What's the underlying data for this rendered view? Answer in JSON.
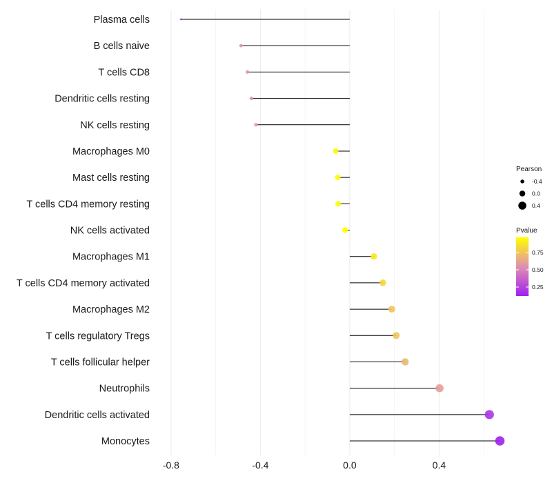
{
  "chart_data": {
    "type": "lollipop",
    "title": "",
    "xlabel": "",
    "ylabel": "",
    "xlim": [
      -0.88,
      0.72
    ],
    "x_ticks": [
      -0.8,
      -0.4,
      0.0,
      0.4
    ],
    "x_tick_labels": [
      "-0.8",
      "-0.4",
      "0.0",
      "0.4"
    ],
    "grid": true,
    "categories": [
      "Plasma cells",
      "B cells naive",
      "T cells CD8",
      "Dendritic cells resting",
      "NK cells resting",
      "Macrophages M0",
      "Mast cells resting",
      "T cells CD4 memory resting",
      "NK cells activated",
      "Macrophages M1",
      "T cells CD4 memory activated",
      "Macrophages M2",
      "T cells regulatory  Tregs ",
      "T cells follicular helper",
      "Neutrophils",
      "Dendritic cells activated",
      "Monocytes"
    ],
    "pearson": [
      -0.755,
      -0.487,
      -0.458,
      -0.44,
      -0.42,
      -0.063,
      -0.054,
      -0.052,
      -0.021,
      0.108,
      0.148,
      0.188,
      0.208,
      0.248,
      0.402,
      0.625,
      0.672
    ],
    "pvalue": [
      0.0,
      0.55,
      0.55,
      0.55,
      0.6,
      0.95,
      0.96,
      0.96,
      0.98,
      0.88,
      0.82,
      0.75,
      0.75,
      0.7,
      0.6,
      0.2,
      0.1
    ],
    "size_legend": {
      "title": "Pearson",
      "labels": [
        "-0.4",
        "0.0",
        "0.4"
      ],
      "values": [
        -0.4,
        0.0,
        0.4
      ]
    },
    "color_legend": {
      "title": "Pvalue",
      "labels": [
        "0.75",
        "0.50",
        "0.25"
      ],
      "values": [
        0.75,
        0.5,
        0.25
      ],
      "range": [
        0.12,
        0.97
      ],
      "low_color": "#a020f0",
      "mid_color": "#e08fb0",
      "high_color": "#ffff00"
    }
  }
}
